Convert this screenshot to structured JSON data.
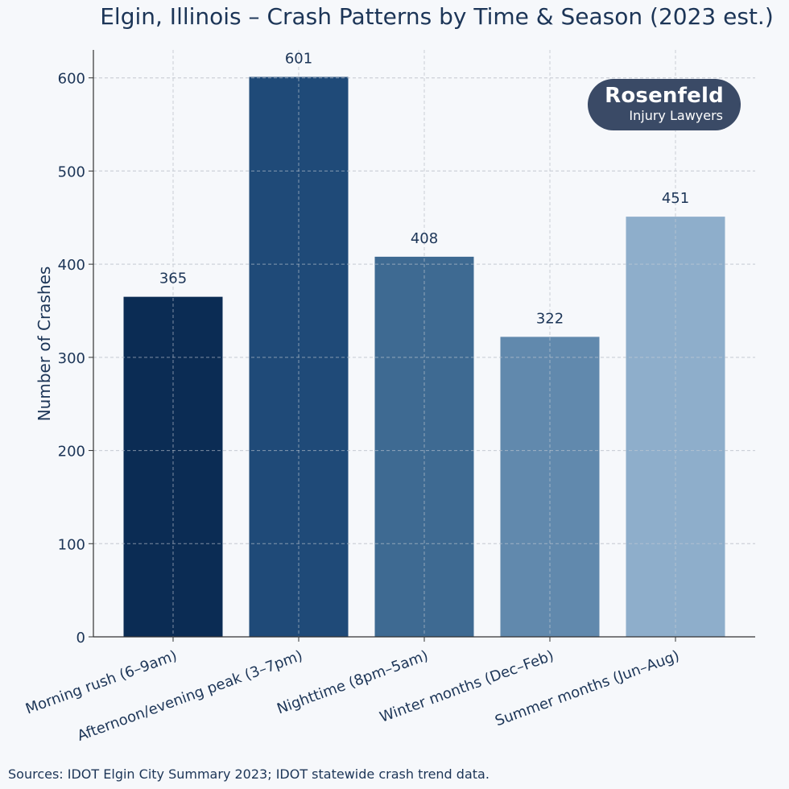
{
  "chart_data": {
    "type": "bar",
    "title": "Elgin, Illinois – Crash Patterns by Time & Season (2023 est.)",
    "xlabel": "",
    "ylabel": "Number of Crashes",
    "ylim": [
      0,
      630
    ],
    "yticks": [
      0,
      100,
      200,
      300,
      400,
      500,
      600
    ],
    "grid": true,
    "categories": [
      "Morning rush (6–9am)",
      "Afternoon/evening peak (3–7pm)",
      "Nighttime (8pm–5am)",
      "Winter months (Dec–Feb)",
      "Summer months (Jun–Aug)"
    ],
    "values": [
      365,
      601,
      408,
      322,
      451
    ],
    "data_labels": [
      "365",
      "601",
      "408",
      "322",
      "451"
    ],
    "bar_colors": [
      "#0b2c54",
      "#1f4a78",
      "#3e6a92",
      "#6189ad",
      "#8eaecb"
    ]
  },
  "logo": {
    "name": "Rosenfeld",
    "subtitle": "Injury Lawyers"
  },
  "source_note": "Sources: IDOT Elgin City Summary 2023; IDOT statewide crash trend data."
}
